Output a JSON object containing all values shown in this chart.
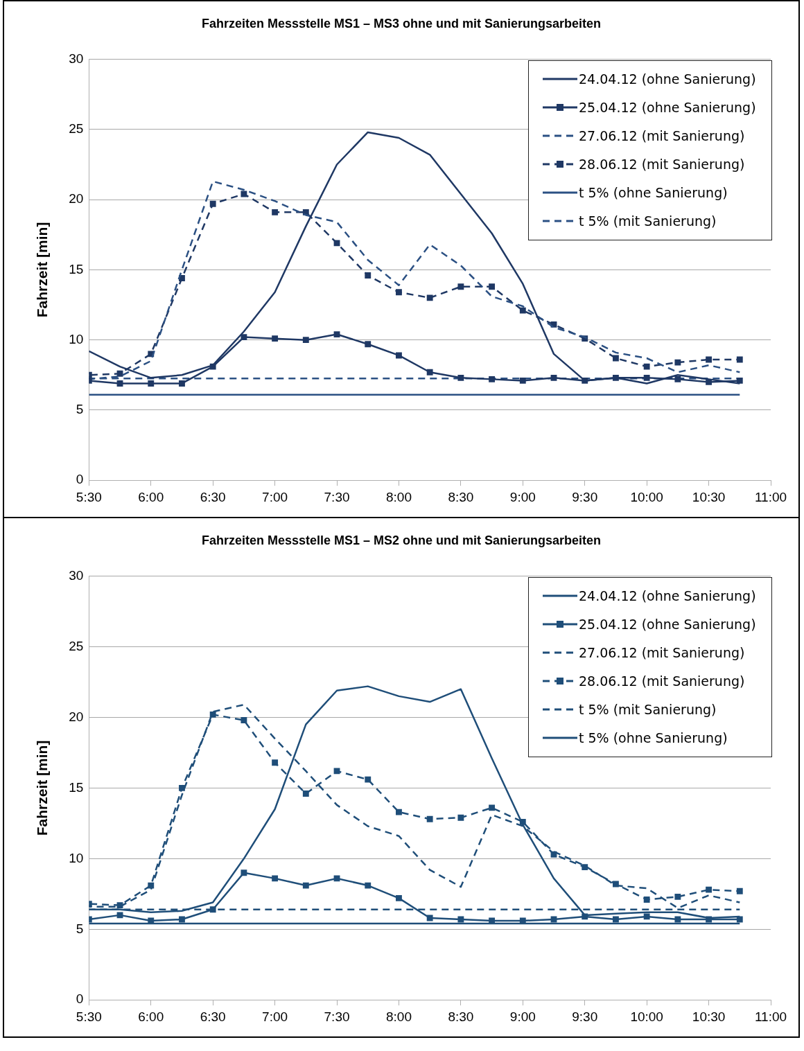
{
  "chart_data": [
    {
      "type": "line",
      "title": "Fahrzeiten Messstelle MS1 – MS3 ohne und mit Sanierungsarbeiten",
      "ylabel": "Fahrzeit [min]",
      "x": [
        5.5,
        5.75,
        6,
        6.25,
        6.5,
        6.75,
        7,
        7.25,
        7.5,
        7.75,
        8,
        8.25,
        8.5,
        8.75,
        9,
        9.25,
        9.5,
        9.75,
        10,
        10.25,
        10.5,
        10.75
      ],
      "xlim": [
        5.5,
        11
      ],
      "xticks": [
        {
          "value": 5.5,
          "label": "5:30"
        },
        {
          "value": 6,
          "label": "6:00"
        },
        {
          "value": 6.5,
          "label": "6:30"
        },
        {
          "value": 7,
          "label": "7:00"
        },
        {
          "value": 7.5,
          "label": "7:30"
        },
        {
          "value": 8,
          "label": "8:00"
        },
        {
          "value": 8.5,
          "label": "8:30"
        },
        {
          "value": 9,
          "label": "9:00"
        },
        {
          "value": 9.5,
          "label": "9:30"
        },
        {
          "value": 10,
          "label": "10:00"
        },
        {
          "value": 10.5,
          "label": "10:30"
        },
        {
          "value": 11,
          "label": "11:00"
        }
      ],
      "ylim": [
        0,
        30
      ],
      "yticks": [
        0,
        5,
        10,
        15,
        20,
        25,
        30
      ],
      "grid": "y",
      "legend": "top right",
      "series": [
        {
          "name": "24.04.12 (ohne Sanierung)",
          "color": "#1f3864",
          "line_style": "solid",
          "marker": "none",
          "values": [
            9.2,
            8.1,
            7.3,
            7.5,
            8.2,
            10.6,
            13.4,
            18.1,
            22.5,
            24.8,
            24.4,
            23.2,
            20.4,
            17.6,
            14.0,
            9.0,
            7.1,
            7.3,
            6.9,
            7.5,
            7.2,
            6.9
          ]
        },
        {
          "name": "25.04.12 (ohne Sanierung)",
          "color": "#1f3864",
          "line_style": "solid",
          "marker": "square",
          "values": [
            7.1,
            6.9,
            6.9,
            6.9,
            8.1,
            10.2,
            10.1,
            10.0,
            10.4,
            9.7,
            8.9,
            7.7,
            7.3,
            7.2,
            7.1,
            7.3,
            7.1,
            7.3,
            7.3,
            7.2,
            7.0,
            7.1
          ]
        },
        {
          "name": "27.06.12 (mit Sanierung)",
          "color": "#2b5083",
          "line_style": "dashed",
          "marker": "none",
          "values": [
            7.2,
            7.4,
            8.5,
            15.0,
            21.3,
            20.7,
            19.9,
            18.9,
            18.4,
            15.7,
            13.9,
            16.8,
            15.3,
            13.1,
            12.4,
            10.9,
            10.2,
            9.1,
            8.7,
            7.7,
            8.2,
            7.7
          ]
        },
        {
          "name": "28.06.12 (mit Sanierung)",
          "color": "#1f3864",
          "line_style": "dashed",
          "marker": "square",
          "values": [
            7.5,
            7.6,
            9.0,
            14.4,
            19.7,
            20.4,
            19.1,
            19.1,
            16.9,
            14.6,
            13.4,
            13.0,
            13.8,
            13.8,
            12.1,
            11.1,
            10.1,
            8.7,
            8.1,
            8.4,
            8.6,
            8.6
          ]
        },
        {
          "name": "t 5% (ohne Sanierung)",
          "color": "#2b5083",
          "line_style": "solid",
          "marker": "none",
          "values": [
            6.1,
            6.1,
            6.1,
            6.1,
            6.1,
            6.1,
            6.1,
            6.1,
            6.1,
            6.1,
            6.1,
            6.1,
            6.1,
            6.1,
            6.1,
            6.1,
            6.1,
            6.1,
            6.1,
            6.1,
            6.1,
            6.1
          ]
        },
        {
          "name": "t 5% (mit Sanierung)",
          "color": "#2b5083",
          "line_style": "dashed",
          "marker": "none",
          "values": [
            7.25,
            7.25,
            7.25,
            7.25,
            7.25,
            7.25,
            7.25,
            7.25,
            7.25,
            7.25,
            7.25,
            7.25,
            7.25,
            7.25,
            7.25,
            7.25,
            7.25,
            7.25,
            7.25,
            7.25,
            7.25,
            7.25
          ]
        }
      ]
    },
    {
      "type": "line",
      "title": "Fahrzeiten Messstelle MS1 – MS2 ohne und mit Sanierungsarbeiten",
      "ylabel": "Fahrzeit [min]",
      "x": [
        5.5,
        5.75,
        6,
        6.25,
        6.5,
        6.75,
        7,
        7.25,
        7.5,
        7.75,
        8,
        8.25,
        8.5,
        8.75,
        9,
        9.25,
        9.5,
        9.75,
        10,
        10.25,
        10.5,
        10.75
      ],
      "xlim": [
        5.5,
        11
      ],
      "xticks": [
        {
          "value": 5.5,
          "label": "5:30"
        },
        {
          "value": 6,
          "label": "6:00"
        },
        {
          "value": 6.5,
          "label": "6:30"
        },
        {
          "value": 7,
          "label": "7:00"
        },
        {
          "value": 7.5,
          "label": "7:30"
        },
        {
          "value": 8,
          "label": "8:00"
        },
        {
          "value": 8.5,
          "label": "8:30"
        },
        {
          "value": 9,
          "label": "9:00"
        },
        {
          "value": 9.5,
          "label": "9:30"
        },
        {
          "value": 10,
          "label": "10:00"
        },
        {
          "value": 10.5,
          "label": "10:30"
        },
        {
          "value": 11,
          "label": "11:00"
        }
      ],
      "ylim": [
        0,
        30
      ],
      "yticks": [
        0,
        5,
        10,
        15,
        20,
        25,
        30
      ],
      "grid": "y",
      "legend": "top right",
      "series": [
        {
          "name": "24.04.12 (ohne Sanierung)",
          "color": "#1f4e79",
          "line_style": "solid",
          "marker": "none",
          "values": [
            6.4,
            6.4,
            6.2,
            6.3,
            6.9,
            10.0,
            13.5,
            19.5,
            21.9,
            22.2,
            21.5,
            21.1,
            22.0,
            17.1,
            12.4,
            8.6,
            6.0,
            6.1,
            6.2,
            6.2,
            5.8,
            5.9
          ]
        },
        {
          "name": "25.04.12 (ohne Sanierung)",
          "color": "#1f4e79",
          "line_style": "solid",
          "marker": "square",
          "values": [
            5.7,
            6.0,
            5.6,
            5.7,
            6.4,
            9.0,
            8.6,
            8.1,
            8.6,
            8.1,
            7.2,
            5.8,
            5.7,
            5.6,
            5.6,
            5.7,
            5.9,
            5.7,
            5.9,
            5.7,
            5.7,
            5.7
          ]
        },
        {
          "name": "27.06.12 (mit Sanierung)",
          "color": "#1f4e79",
          "line_style": "dashed",
          "marker": "none",
          "values": [
            6.6,
            6.6,
            7.8,
            14.5,
            20.4,
            20.9,
            18.5,
            16.2,
            13.8,
            12.3,
            11.6,
            9.2,
            8.0,
            13.1,
            12.3,
            10.5,
            9.5,
            8.1,
            7.9,
            6.5,
            7.4,
            6.9
          ]
        },
        {
          "name": "28.06.12 (mit Sanierung)",
          "color": "#1f4e79",
          "line_style": "dashed",
          "marker": "square",
          "values": [
            6.8,
            6.7,
            8.1,
            15.0,
            20.2,
            19.8,
            16.8,
            14.6,
            16.2,
            15.6,
            13.3,
            12.8,
            12.9,
            13.6,
            12.6,
            10.3,
            9.4,
            8.2,
            7.1,
            7.3,
            7.8,
            7.7
          ]
        },
        {
          "name": "t 5% (mit Sanierung)",
          "color": "#1f4e79",
          "line_style": "dashed",
          "marker": "none",
          "values": [
            6.4,
            6.4,
            6.4,
            6.4,
            6.4,
            6.4,
            6.4,
            6.4,
            6.4,
            6.4,
            6.4,
            6.4,
            6.4,
            6.4,
            6.4,
            6.4,
            6.4,
            6.4,
            6.4,
            6.4,
            6.4,
            6.4
          ]
        },
        {
          "name": "t 5% (ohne Sanierung)",
          "color": "#1f4e79",
          "line_style": "solid",
          "marker": "none",
          "values": [
            5.4,
            5.4,
            5.4,
            5.4,
            5.4,
            5.4,
            5.4,
            5.4,
            5.4,
            5.4,
            5.4,
            5.4,
            5.4,
            5.4,
            5.4,
            5.4,
            5.4,
            5.4,
            5.4,
            5.4,
            5.4,
            5.4
          ]
        }
      ]
    }
  ]
}
